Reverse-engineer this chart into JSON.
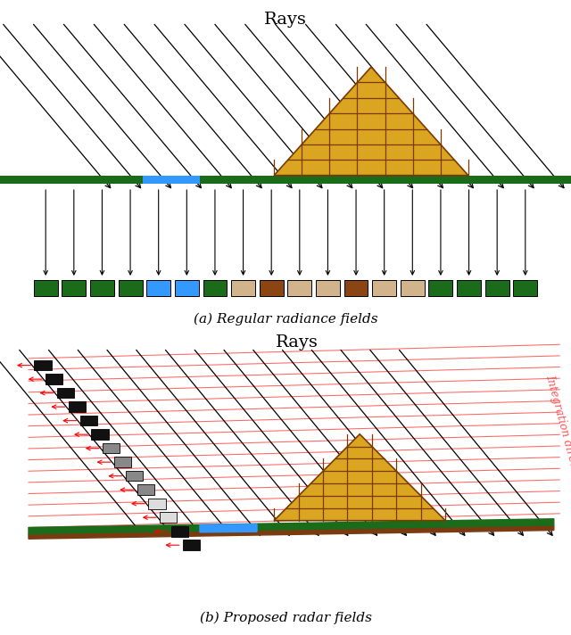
{
  "fig_width": 6.4,
  "fig_height": 7.12,
  "bg_color": "#ffffff",
  "panel_a_title": "Rays",
  "panel_a_caption": "(a) Regular radiance fields",
  "panel_b_title": "Rays",
  "panel_b_caption": "(b) Proposed radar fields",
  "integration_label": "Integration directions",
  "grass_color": "#1a6b1a",
  "ground_color": "#7B3B10",
  "pyramid_fill": "#DAA520",
  "pyramid_edge": "#7B3B00",
  "brick_line_color": "#7B3B00",
  "blue_rect_color": "#3399ff",
  "ray_color": "#000000",
  "red_line_color": "#ff5555",
  "pixel_colors_a": [
    "#1a6b1a",
    "#1a6b1a",
    "#1a6b1a",
    "#1a6b1a",
    "#3399ff",
    "#3399ff",
    "#1a6b1a",
    "#D2B48C",
    "#8B4513",
    "#D2B48C",
    "#D2B48C",
    "#8B4513",
    "#D2B48C",
    "#D2B48C",
    "#1a6b1a",
    "#1a6b1a",
    "#1a6b1a",
    "#1a6b1a"
  ],
  "col_colors_b": [
    "#111111",
    "#111111",
    "#111111",
    "#111111",
    "#111111",
    "#111111",
    "#888888",
    "#888888",
    "#888888",
    "#888888",
    "#dddddd",
    "#dddddd",
    "#111111",
    "#111111"
  ]
}
